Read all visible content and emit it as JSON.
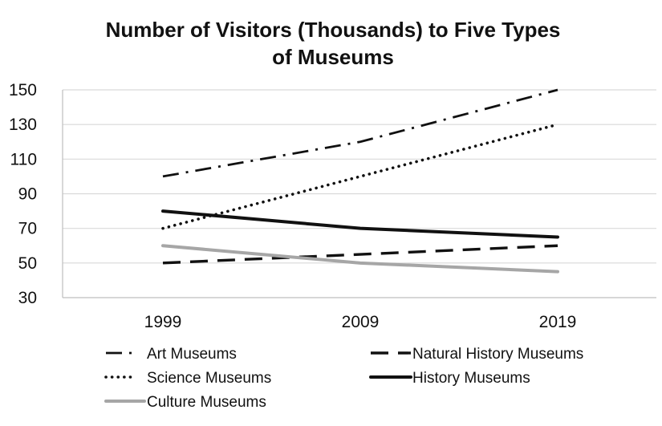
{
  "chart_data": {
    "type": "line",
    "title_lines": [
      "Number of Visitors (Thousands) to Five Types",
      "of Museums"
    ],
    "xlabel": "",
    "ylabel": "",
    "categories": [
      "1999",
      "2009",
      "2019"
    ],
    "ylim": [
      30,
      150
    ],
    "yticks": [
      30,
      50,
      70,
      90,
      110,
      130,
      150
    ],
    "grid": true,
    "legend_position": "bottom",
    "series": [
      {
        "name": "Art Museums",
        "values": [
          100,
          120,
          150
        ],
        "color": "#111111",
        "style": "dash-dot"
      },
      {
        "name": "Natural History Museums",
        "values": [
          50,
          55,
          60
        ],
        "color": "#111111",
        "style": "dashed"
      },
      {
        "name": "Science Museums",
        "values": [
          70,
          100,
          130
        ],
        "color": "#111111",
        "style": "dotted"
      },
      {
        "name": "History Museums",
        "values": [
          80,
          70,
          65
        ],
        "color": "#111111",
        "style": "solid"
      },
      {
        "name": "Culture Museums",
        "values": [
          60,
          50,
          45
        ],
        "color": "#a6a6a6",
        "style": "solid"
      }
    ]
  }
}
